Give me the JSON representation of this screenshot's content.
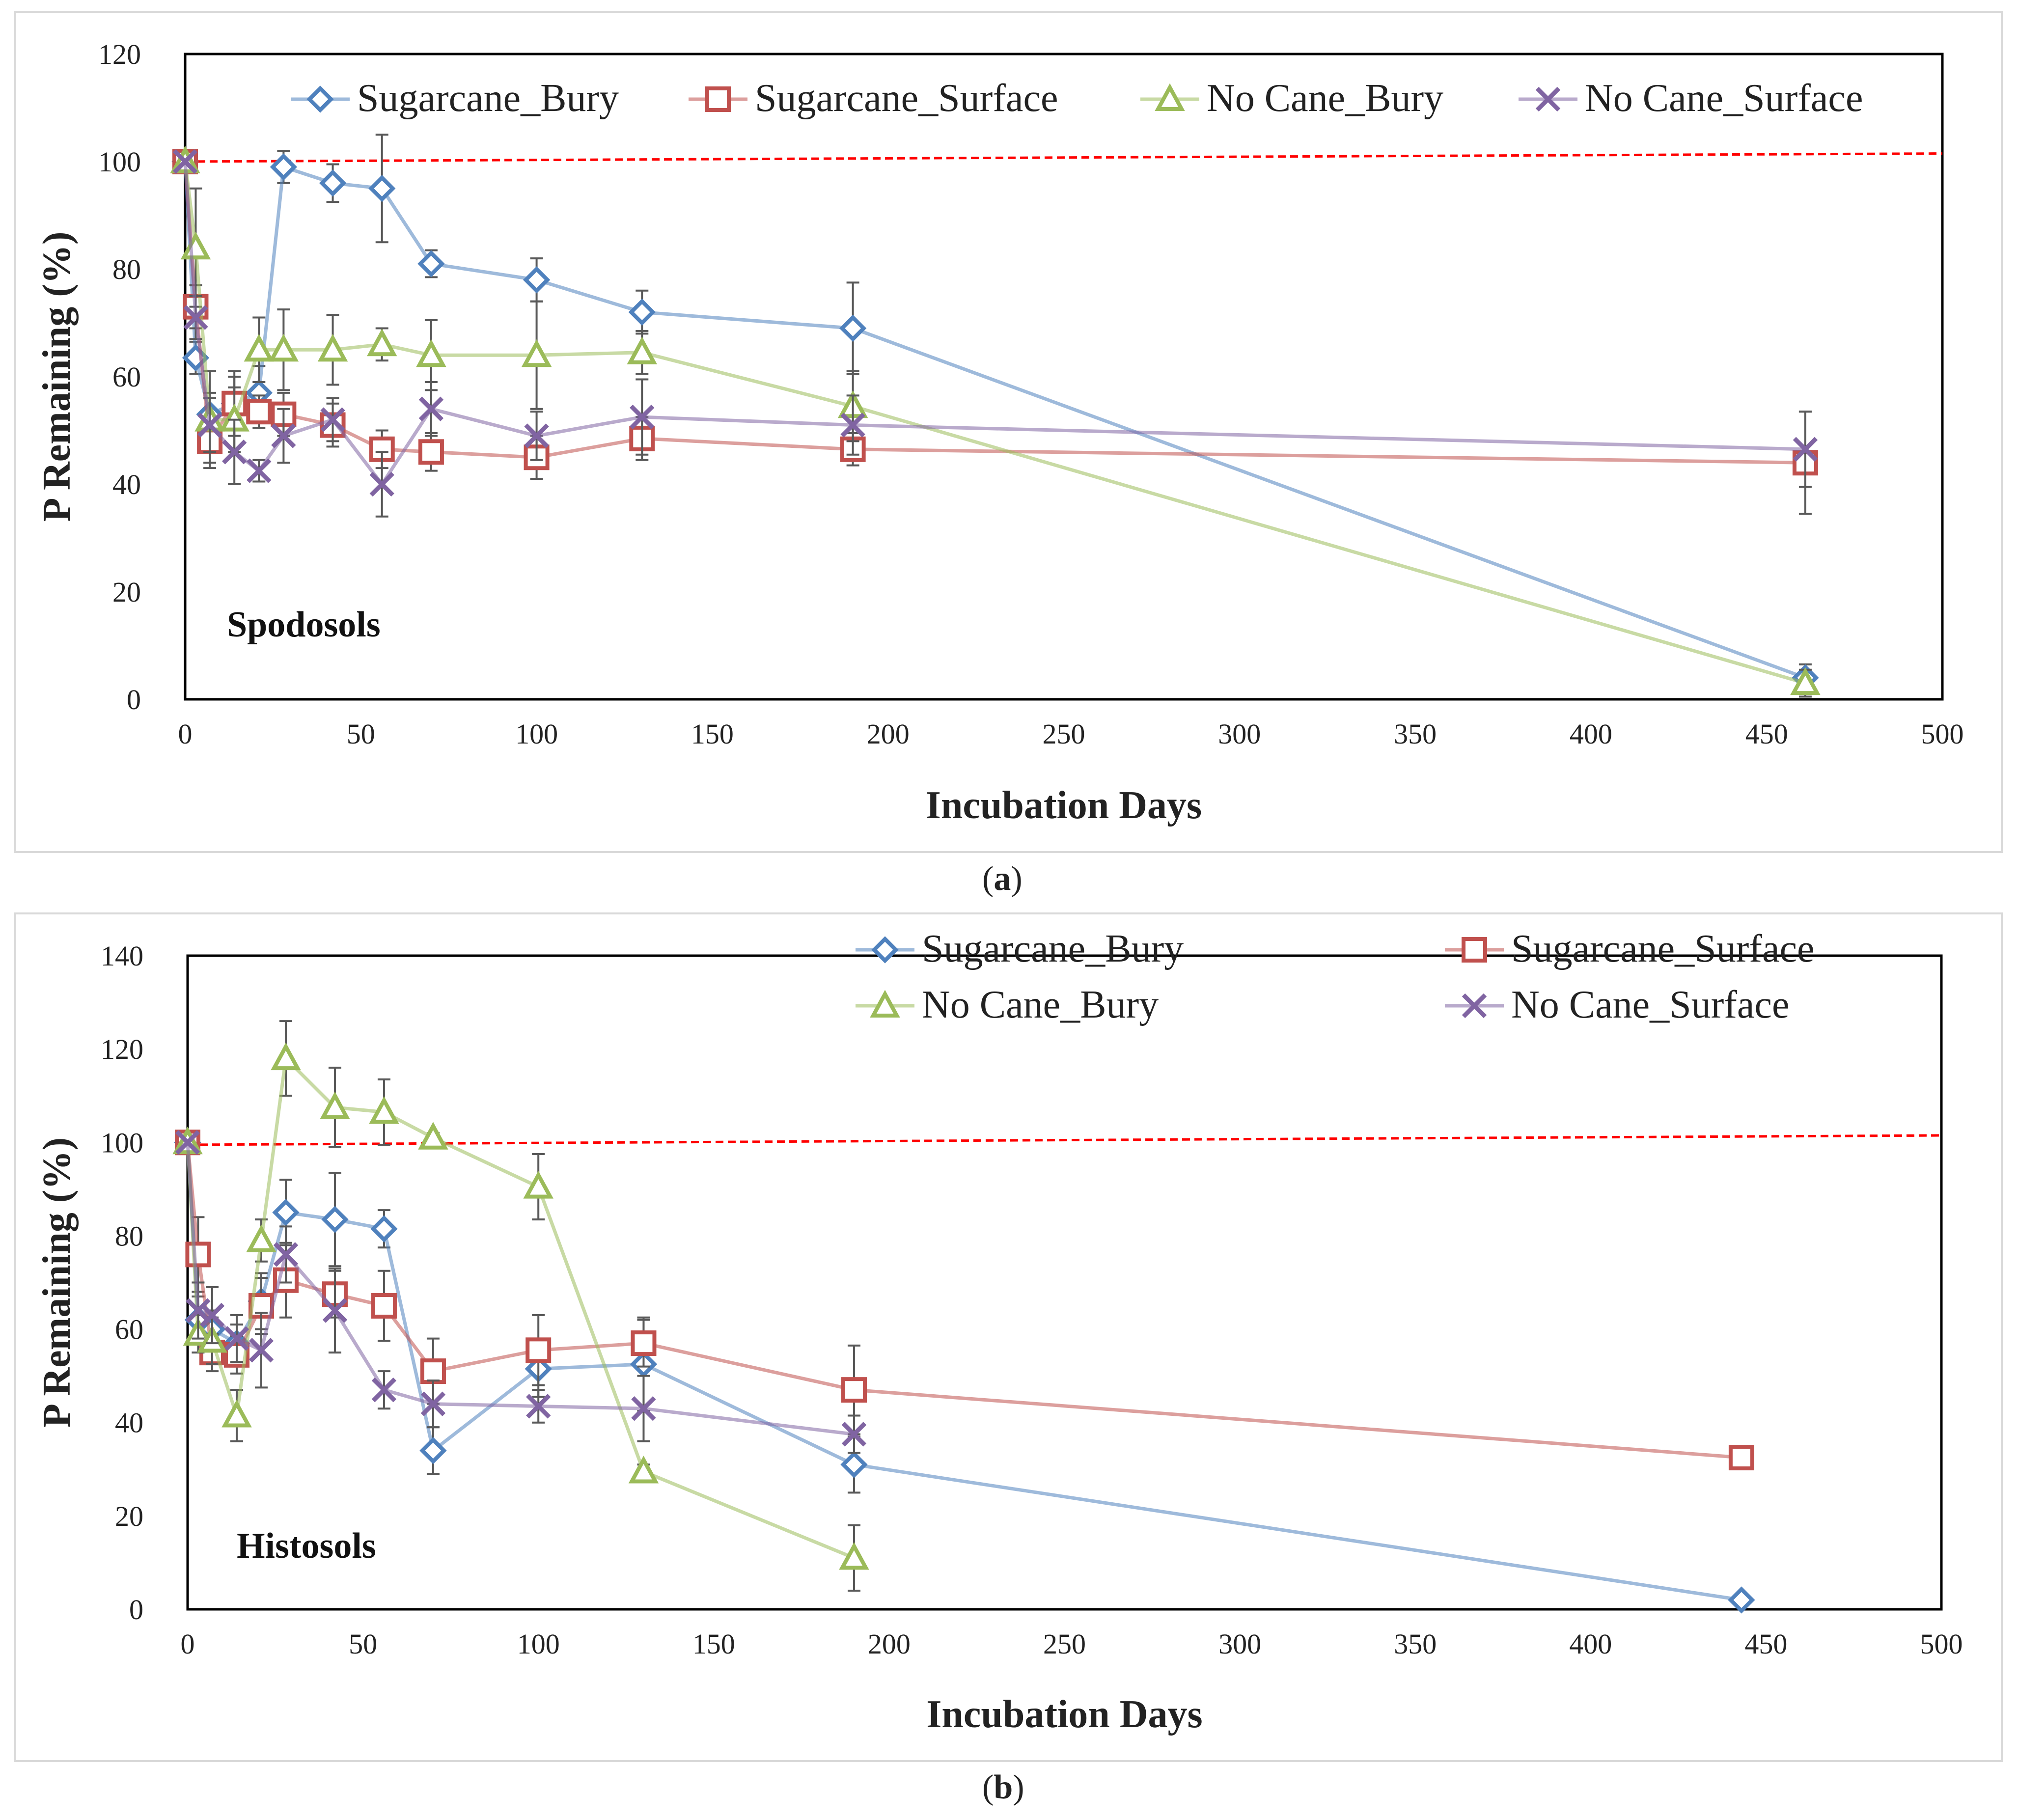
{
  "captions": {
    "a_open": "(",
    "a_letter": "a",
    "a_close": ")",
    "b_open": "(",
    "b_letter": "b",
    "b_close": ")"
  },
  "colors": {
    "Sugarcane_Bury": "#4f81bd",
    "Sugarcane_Surface": "#c0504d",
    "No Cane_Bury": "#9bbb59",
    "No Cane_Surface": "#8064a2",
    "reference": "#ff0000",
    "errorbar": "#595959"
  },
  "chart_data": [
    {
      "type": "line",
      "annotation": "Spodosols",
      "xlabel": "Incubation Days",
      "ylabel": "P Remaining (%)",
      "xlim": [
        0,
        500
      ],
      "ylim": [
        0,
        120
      ],
      "xticks": [
        0,
        50,
        100,
        150,
        200,
        250,
        300,
        350,
        400,
        450,
        500
      ],
      "yticks": [
        0,
        20,
        40,
        60,
        80,
        100,
        120
      ],
      "legend_placement": "top",
      "reference_line": {
        "value": 100,
        "value_end": 101.5,
        "style": "dashed"
      },
      "series": [
        {
          "name": "Sugarcane_Bury",
          "marker": "diamond",
          "x": [
            0,
            3,
            7,
            14,
            21,
            28,
            42,
            56,
            70,
            100,
            130,
            190,
            461
          ],
          "y": [
            100,
            63.5,
            53,
            55,
            57,
            99,
            96,
            95,
            81,
            78,
            72,
            69,
            4
          ],
          "err": [
            0,
            3,
            4,
            5,
            5,
            3,
            3.5,
            10,
            2.5,
            4,
            4,
            8.5,
            2.5
          ]
        },
        {
          "name": "Sugarcane_Surface",
          "marker": "square",
          "x": [
            0,
            3,
            7,
            14,
            21,
            28,
            42,
            56,
            70,
            100,
            130,
            190,
            461
          ],
          "y": [
            100,
            73,
            48,
            55,
            53.5,
            53,
            51,
            46.5,
            46,
            45,
            48.5,
            46.5,
            44
          ],
          "err": [
            0,
            4,
            4,
            6,
            3,
            4,
            4,
            3.5,
            3.5,
            4,
            4,
            3,
            9.5
          ]
        },
        {
          "name": "No Cane_Bury",
          "marker": "triangle",
          "x": [
            0,
            3,
            7,
            14,
            21,
            28,
            42,
            56,
            70,
            100,
            130,
            190,
            461
          ],
          "y": [
            100,
            84,
            52,
            52,
            65,
            65,
            65,
            66,
            64,
            64,
            64.5,
            54.5,
            3
          ],
          "err": [
            0,
            11,
            9,
            6,
            6,
            7.5,
            6.5,
            3,
            6.5,
            10,
            4,
            6.5,
            2.5
          ]
        },
        {
          "name": "No Cane_Surface",
          "marker": "x",
          "x": [
            0,
            3,
            7,
            14,
            21,
            28,
            42,
            56,
            70,
            100,
            130,
            190,
            461
          ],
          "y": [
            100,
            71,
            51,
            46,
            42.5,
            49,
            52,
            40,
            54,
            49,
            52.5,
            51,
            46.5
          ],
          "err": [
            0,
            4,
            5,
            6,
            2,
            5,
            4,
            6,
            5,
            4.5,
            7,
            5.5,
            7
          ]
        }
      ]
    },
    {
      "type": "line",
      "annotation": "Histosols",
      "xlabel": "Incubation Days",
      "ylabel": "P Remaining (%)",
      "xlim": [
        0,
        500
      ],
      "ylim": [
        0,
        140
      ],
      "xticks": [
        0,
        50,
        100,
        150,
        200,
        250,
        300,
        350,
        400,
        450,
        500
      ],
      "yticks": [
        0,
        20,
        40,
        60,
        80,
        100,
        120,
        140
      ],
      "legend_placement": "top-right",
      "reference_line": {
        "value": 99.5,
        "value_end": 101.5,
        "style": "dashed"
      },
      "series": [
        {
          "name": "Sugarcane_Bury",
          "marker": "diamond",
          "x": [
            0,
            3,
            7,
            14,
            21,
            28,
            42,
            56,
            70,
            100,
            130,
            190,
            443
          ],
          "y": [
            100,
            62,
            60,
            57,
            66,
            85,
            83.5,
            81.5,
            34,
            51.5,
            52.5,
            31,
            2
          ],
          "err": [
            0,
            5,
            4,
            4,
            6,
            7,
            10,
            4,
            5,
            6,
            10,
            6,
            0
          ]
        },
        {
          "name": "Sugarcane_Surface",
          "marker": "square",
          "x": [
            0,
            3,
            7,
            14,
            21,
            28,
            42,
            56,
            70,
            100,
            130,
            190,
            443
          ],
          "y": [
            100,
            76,
            55,
            54.5,
            65,
            70.5,
            67.5,
            65,
            51,
            55.5,
            57,
            47,
            32.5
          ],
          "err": [
            0,
            8,
            4,
            4,
            6,
            8,
            5,
            7.5,
            7,
            7.5,
            5,
            9.5,
            0
          ]
        },
        {
          "name": "No Cane_Bury",
          "marker": "triangle",
          "x": [
            0,
            3,
            7,
            14,
            21,
            28,
            42,
            56,
            70,
            100,
            130,
            190
          ],
          "y": [
            100,
            59,
            57.5,
            41.5,
            79,
            118,
            107.5,
            106.5,
            101,
            90.5,
            29.5,
            11
          ],
          "err": [
            0,
            4,
            5,
            5.5,
            4.5,
            8,
            8.5,
            7,
            1,
            7,
            1.5,
            7
          ]
        },
        {
          "name": "No Cane_Surface",
          "marker": "x",
          "x": [
            0,
            3,
            7,
            14,
            21,
            28,
            42,
            56,
            70,
            100,
            130,
            190
          ],
          "y": [
            100,
            64,
            63,
            58,
            55.5,
            76,
            64,
            47,
            44,
            43.5,
            43,
            37.5
          ],
          "err": [
            0,
            6,
            6,
            5,
            8,
            6,
            9,
            4,
            5,
            3.5,
            7,
            4
          ]
        }
      ]
    }
  ]
}
